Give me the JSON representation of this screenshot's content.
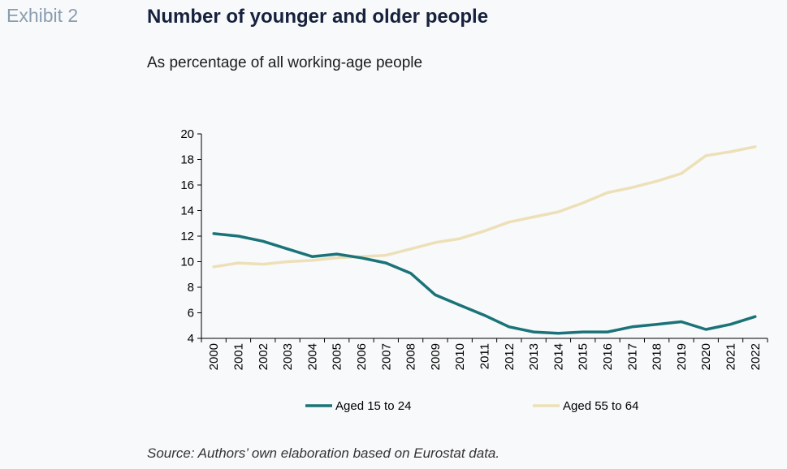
{
  "header": {
    "exhibit": "Exhibit 2",
    "title": "Number of younger and older people",
    "subtitle": "As percentage of all working-age people"
  },
  "footer": {
    "source": "Source: Authors’ own elaboration based on Eurostat data."
  },
  "chart_data": {
    "type": "line",
    "title": "Number of younger and older people",
    "subtitle": "As percentage of all working-age people",
    "xlabel": "",
    "ylabel": "",
    "ylim": [
      4,
      20
    ],
    "yticks": [
      4,
      6,
      8,
      10,
      12,
      14,
      16,
      18,
      20
    ],
    "grid": false,
    "legend_position": "bottom",
    "x": [
      "2000",
      "2001",
      "2002",
      "2003",
      "2004",
      "2005",
      "2006",
      "2007",
      "2008",
      "2009",
      "2010",
      "2011",
      "2012",
      "2013",
      "2014",
      "2015",
      "2016",
      "2017",
      "2018",
      "2019",
      "2020",
      "2021",
      "2022"
    ],
    "series": [
      {
        "name": "Aged 15 to 24",
        "color": "#1a7378",
        "values": [
          12.2,
          12.0,
          11.6,
          11.0,
          10.4,
          10.6,
          10.3,
          9.9,
          9.1,
          7.4,
          6.6,
          5.8,
          4.9,
          4.5,
          4.4,
          4.5,
          4.5,
          4.9,
          5.1,
          5.3,
          4.7,
          5.1,
          5.7
        ]
      },
      {
        "name": "Aged 55 to 64",
        "color": "#ede0b8",
        "values": [
          9.6,
          9.9,
          9.8,
          10.0,
          10.1,
          10.3,
          10.4,
          10.5,
          11.0,
          11.5,
          11.8,
          12.4,
          13.1,
          13.5,
          13.9,
          14.6,
          15.4,
          15.8,
          16.3,
          16.9,
          18.3,
          18.6,
          19.0
        ]
      }
    ]
  }
}
